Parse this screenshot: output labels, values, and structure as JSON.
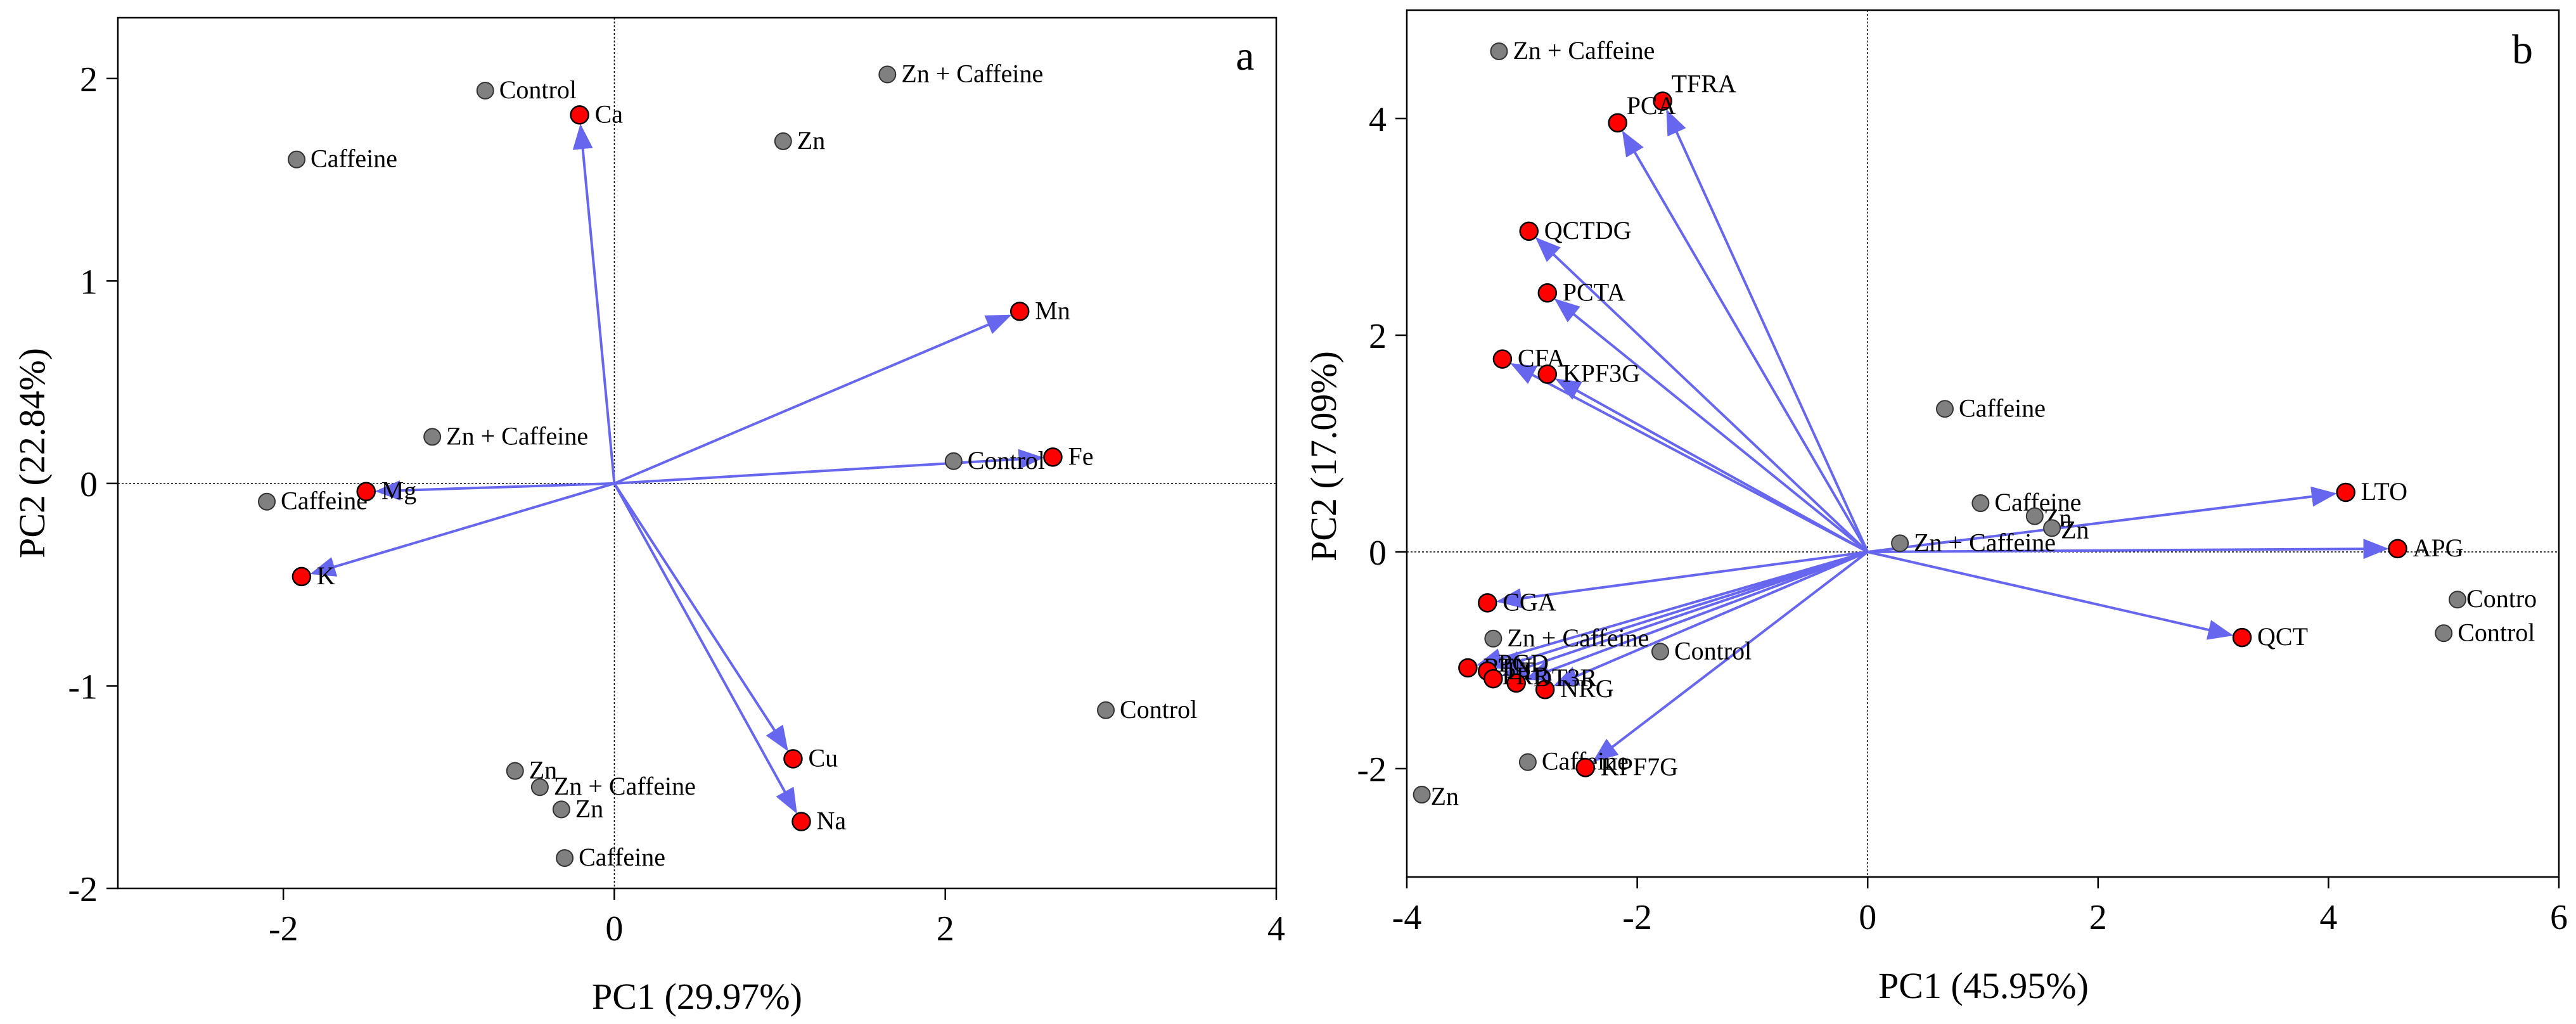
{
  "chart_data": [
    {
      "type": "scatter",
      "subtype": "biplot",
      "panel": "a",
      "xlabel": "PC1 (29.97%)",
      "ylabel": "PC2 (22.84%)",
      "xlim": [
        -3,
        4
      ],
      "ylim": [
        -2,
        2.3
      ],
      "xticks": [
        -2,
        0,
        2,
        4
      ],
      "yticks": [
        -2,
        -1,
        0,
        1,
        2
      ],
      "xtick_labels": [
        "-2",
        "0",
        "2",
        "4"
      ],
      "ytick_labels": [
        "-2",
        "-1",
        "0",
        "1",
        "2"
      ],
      "samples": [
        {
          "label": "Control",
          "x": -0.78,
          "y": 1.94
        },
        {
          "label": "Zn + Caffeine",
          "x": 1.65,
          "y": 2.02
        },
        {
          "label": "Caffeine",
          "x": -1.92,
          "y": 1.6
        },
        {
          "label": "Zn",
          "x": 1.02,
          "y": 1.69
        },
        {
          "label": "Zn + Caffeine",
          "x": -1.1,
          "y": 0.23
        },
        {
          "label": "Control",
          "x": 2.05,
          "y": 0.11
        },
        {
          "label": "Caffeine",
          "x": -2.1,
          "y": -0.09
        },
        {
          "label": "Control",
          "x": 2.97,
          "y": -1.12
        },
        {
          "label": "Zn",
          "x": -0.6,
          "y": -1.42
        },
        {
          "label": "Zn + Caffeine",
          "x": -0.45,
          "y": -1.5
        },
        {
          "label": "Zn",
          "x": -0.32,
          "y": -1.61
        },
        {
          "label": "Caffeine",
          "x": -0.3,
          "y": -1.85
        }
      ],
      "variables": [
        {
          "label": "Ca",
          "x": -0.21,
          "y": 1.82
        },
        {
          "label": "Mn",
          "x": 2.45,
          "y": 0.85
        },
        {
          "label": "Fe",
          "x": 2.65,
          "y": 0.13
        },
        {
          "label": "Mg",
          "x": -1.5,
          "y": -0.04
        },
        {
          "label": "K",
          "x": -1.89,
          "y": -0.46
        },
        {
          "label": "Cu",
          "x": 1.08,
          "y": -1.36
        },
        {
          "label": "Na",
          "x": 1.13,
          "y": -1.67
        }
      ]
    },
    {
      "type": "scatter",
      "subtype": "biplot",
      "panel": "b",
      "xlabel": "PC1 (45.95%)",
      "ylabel": "PC2 (17.09%)",
      "xlim": [
        -4,
        6
      ],
      "ylim": [
        -3,
        5
      ],
      "xticks": [
        -4,
        -2,
        0,
        2,
        4,
        6
      ],
      "yticks": [
        -2,
        0,
        2,
        4
      ],
      "xtick_labels": [
        "-4",
        "-2",
        "0",
        "2",
        "4",
        "6"
      ],
      "ytick_labels": [
        "-2",
        "0",
        "2",
        "4"
      ],
      "samples": [
        {
          "label": "Zn + Caffeine",
          "x": -3.2,
          "y": 4.62
        },
        {
          "label": "Caffeine",
          "x": 0.67,
          "y": 1.32
        },
        {
          "label": "Caffeine",
          "x": 0.98,
          "y": 0.45
        },
        {
          "label": "Zn",
          "x": 1.45,
          "y": 0.33
        },
        {
          "label": "Zn",
          "x": 1.6,
          "y": 0.22
        },
        {
          "label": "Zn + Caffeine",
          "x": 0.28,
          "y": 0.08
        },
        {
          "label": "Contro",
          "x": 5.12,
          "y": -0.44
        },
        {
          "label": "Control",
          "x": 5.0,
          "y": -0.75
        },
        {
          "label": "Zn + Caffeine",
          "x": -3.25,
          "y": -0.8
        },
        {
          "label": "Control",
          "x": -1.8,
          "y": -0.92
        },
        {
          "label": "Caffeine",
          "x": -2.95,
          "y": -1.94
        },
        {
          "label": "Zn",
          "x": -3.87,
          "y": -2.24
        }
      ],
      "variables": [
        {
          "label": "TFRA",
          "x": -1.78,
          "y": 4.16
        },
        {
          "label": "PCA",
          "x": -2.17,
          "y": 3.96
        },
        {
          "label": "QCTDG",
          "x": -2.94,
          "y": 2.96
        },
        {
          "label": "PCTA",
          "x": -2.78,
          "y": 2.39
        },
        {
          "label": "CFA",
          "x": -3.17,
          "y": 1.78
        },
        {
          "label": "KPF3G",
          "x": -2.78,
          "y": 1.64
        },
        {
          "label": "LTO",
          "x": 4.15,
          "y": 0.55
        },
        {
          "label": "APG",
          "x": 4.6,
          "y": 0.03
        },
        {
          "label": "QCT",
          "x": 3.25,
          "y": -0.79
        },
        {
          "label": "CGA",
          "x": -3.3,
          "y": -0.47
        },
        {
          "label": "RTN",
          "x": -3.47,
          "y": -1.07
        },
        {
          "label": "NRG",
          "x": -2.8,
          "y": -1.27
        },
        {
          "label": "KPF7G",
          "x": -2.45,
          "y": -1.99
        }
      ],
      "unlabeled_variables": [
        {
          "x": -3.3,
          "y": -1.1
        },
        {
          "x": -3.25,
          "y": -1.17
        },
        {
          "x": -3.05,
          "y": -1.21
        }
      ],
      "overlapping_text": [
        "PGD",
        "LT",
        "PRR",
        "DT3R"
      ]
    }
  ],
  "panel_letters": {
    "a": "a",
    "b": "b"
  },
  "colors": {
    "sample_fill": "#808080",
    "variable_fill": "#ff0000",
    "arrow": "#6666ee",
    "axis": "#000000",
    "zero_line": "#000000"
  }
}
